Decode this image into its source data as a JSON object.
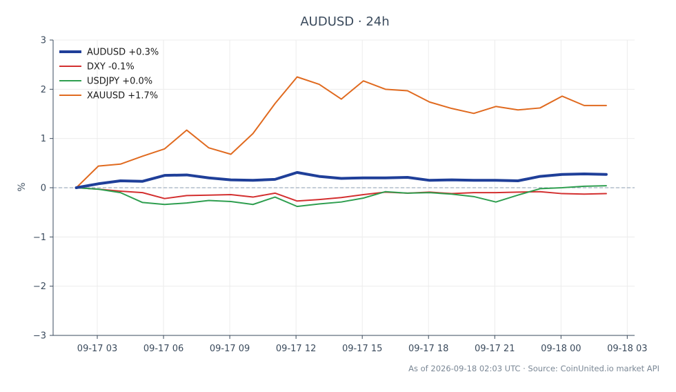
{
  "chart_data": {
    "type": "line",
    "title": "AUDUSD · 24h",
    "xlabel": "",
    "ylabel": "%",
    "ylim": [
      -3,
      3
    ],
    "xlim": [
      "2026-09-17 01:00",
      "2026-09-18 03:20"
    ],
    "grid": true,
    "legend_position": "top-left",
    "zero_reference_line": 0,
    "x_tick_labels": [
      "09-17 03",
      "09-17 06",
      "09-17 09",
      "09-17 12",
      "09-17 15",
      "09-17 18",
      "09-17 21",
      "09-18 00",
      "09-18 03"
    ],
    "x_tick_times": [
      "2026-09-17 03:00",
      "2026-09-17 06:00",
      "2026-09-17 09:00",
      "2026-09-17 12:00",
      "2026-09-17 15:00",
      "2026-09-17 18:00",
      "2026-09-17 21:00",
      "2026-09-18 00:00",
      "2026-09-18 03:00"
    ],
    "y_ticks": [
      -3,
      -2,
      -1,
      0,
      1,
      2,
      3
    ],
    "y_tick_labels": [
      "−3",
      "−2",
      "−1",
      "0",
      "1",
      "2",
      "3"
    ],
    "x": [
      "2026-09-17 02:03",
      "2026-09-17 03:03",
      "2026-09-17 04:03",
      "2026-09-17 05:03",
      "2026-09-17 06:03",
      "2026-09-17 07:03",
      "2026-09-17 08:03",
      "2026-09-17 09:03",
      "2026-09-17 10:03",
      "2026-09-17 11:03",
      "2026-09-17 12:03",
      "2026-09-17 13:03",
      "2026-09-17 14:03",
      "2026-09-17 15:03",
      "2026-09-17 16:03",
      "2026-09-17 17:03",
      "2026-09-17 18:03",
      "2026-09-17 19:03",
      "2026-09-17 20:03",
      "2026-09-17 21:03",
      "2026-09-17 22:03",
      "2026-09-17 23:03",
      "2026-09-18 00:03",
      "2026-09-18 01:03",
      "2026-09-18 02:03"
    ],
    "series": [
      {
        "name": "AUDUSD +0.3%",
        "color": "#1f3f99",
        "emphasis": true,
        "values": [
          0.0,
          0.08,
          0.14,
          0.13,
          0.25,
          0.26,
          0.2,
          0.16,
          0.15,
          0.17,
          0.31,
          0.23,
          0.19,
          0.2,
          0.2,
          0.21,
          0.15,
          0.16,
          0.15,
          0.15,
          0.14,
          0.23,
          0.27,
          0.28,
          0.27
        ]
      },
      {
        "name": "DXY -0.1%",
        "color": "#d32f2f",
        "emphasis": false,
        "values": [
          0.0,
          -0.03,
          -0.07,
          -0.1,
          -0.22,
          -0.16,
          -0.15,
          -0.14,
          -0.19,
          -0.11,
          -0.27,
          -0.24,
          -0.2,
          -0.14,
          -0.09,
          -0.11,
          -0.09,
          -0.12,
          -0.1,
          -0.1,
          -0.09,
          -0.08,
          -0.12,
          -0.13,
          -0.12
        ]
      },
      {
        "name": "USDJPY +0.0%",
        "color": "#2e9e4f",
        "emphasis": false,
        "values": [
          0.0,
          -0.03,
          -0.1,
          -0.3,
          -0.34,
          -0.31,
          -0.26,
          -0.28,
          -0.34,
          -0.19,
          -0.38,
          -0.33,
          -0.29,
          -0.21,
          -0.08,
          -0.11,
          -0.1,
          -0.13,
          -0.18,
          -0.29,
          -0.15,
          -0.02,
          0.0,
          0.03,
          0.04
        ]
      },
      {
        "name": "XAUUSD +1.7%",
        "color": "#e06a1f",
        "emphasis": false,
        "values": [
          0.0,
          0.44,
          0.48,
          0.64,
          0.79,
          1.17,
          0.81,
          0.68,
          1.1,
          1.71,
          2.25,
          2.1,
          1.8,
          2.17,
          2.0,
          1.97,
          1.74,
          1.61,
          1.51,
          1.65,
          1.58,
          1.62,
          1.86,
          1.67,
          1.67
        ]
      }
    ]
  },
  "footer": {
    "source_text": "As of 2026-09-18 02:03 UTC · Source: CoinUnited.io market API"
  }
}
